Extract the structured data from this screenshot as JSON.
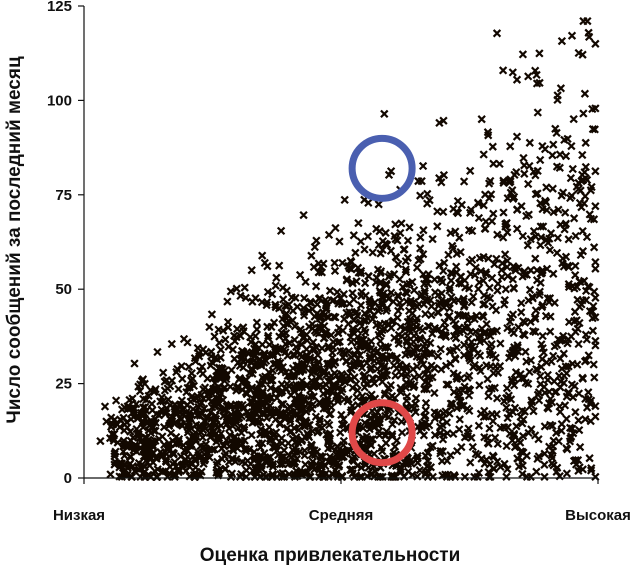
{
  "chart_data": {
    "type": "scatter",
    "xlabel": "Оценка привлекательности",
    "ylabel": "Число сообщений за последний месяц",
    "x_categories": [
      "Низкая",
      "Средняя",
      "Высокая"
    ],
    "yticks": [
      "0",
      "25",
      "50",
      "75",
      "100",
      "125"
    ],
    "ylim": [
      0,
      125
    ],
    "xlim": [
      0,
      1
    ],
    "marker": "x",
    "marker_color": "#120800",
    "point_count_approx": 3000,
    "trend": "positive: messages increase with attractiveness rating",
    "highlight_circles": [
      {
        "name": "blue-circle",
        "color": "#4a5fb0",
        "x": 0.58,
        "y": 82
      },
      {
        "name": "red-circle",
        "color": "#e04848",
        "x": 0.58,
        "y": 12
      }
    ]
  }
}
